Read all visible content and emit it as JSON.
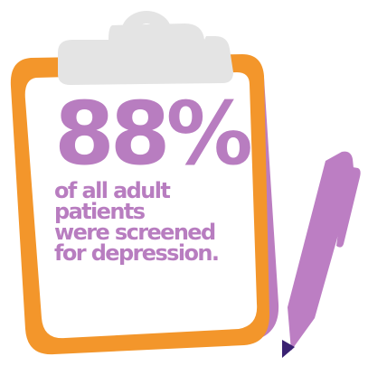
{
  "stat": {
    "value": "88%",
    "caption_lines": [
      "of all adult",
      "patients",
      "were screened",
      "for depression."
    ]
  },
  "icons": {
    "clipboard": "clipboard-icon",
    "pen": "pen-icon"
  },
  "colors": {
    "board_frame": "#f3962b",
    "board_shadow": "#bb7dc0",
    "clip": "#e4e4e4",
    "text": "#b87dc0",
    "pen_body": "#bc7ec3",
    "pen_tip": "#3a2272"
  }
}
